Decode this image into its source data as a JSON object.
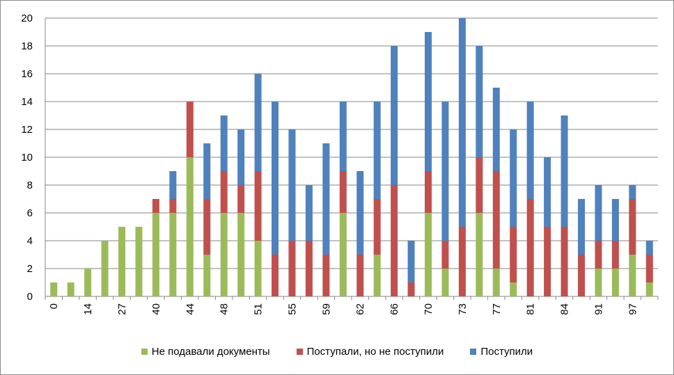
{
  "chart_data": {
    "type": "bar",
    "stacked": true,
    "ylim": [
      0,
      20
    ],
    "yticks": [
      0,
      2,
      4,
      6,
      8,
      10,
      12,
      14,
      16,
      18,
      20
    ],
    "grid": true,
    "legend_position": "bottom",
    "xtick_labels": [
      "0",
      "14",
      "27",
      "40",
      "44",
      "48",
      "51",
      "55",
      "59",
      "62",
      "66",
      "70",
      "73",
      "77",
      "81",
      "84",
      "91",
      "97"
    ],
    "series": [
      {
        "name": "Не подавали документы",
        "color": "#9bbb59",
        "values": [
          1,
          1,
          2,
          4,
          5,
          5,
          6,
          6,
          10,
          3,
          6,
          6,
          4,
          0,
          0,
          0,
          0,
          6,
          0,
          3,
          0,
          0,
          6,
          2,
          0,
          6,
          2,
          1,
          0,
          0,
          0,
          0,
          2,
          2,
          3,
          1
        ]
      },
      {
        "name": "Поступали, но не поступили",
        "color": "#c0504d",
        "values": [
          0,
          0,
          0,
          0,
          0,
          0,
          1,
          1,
          4,
          4,
          3,
          2,
          5,
          3,
          4,
          4,
          3,
          3,
          3,
          4,
          8,
          1,
          3,
          2,
          5,
          4,
          7,
          4,
          7,
          5,
          5,
          3,
          2,
          2,
          4,
          2
        ]
      },
      {
        "name": "Поступили",
        "color": "#4f81bd",
        "values": [
          0,
          0,
          0,
          0,
          0,
          0,
          0,
          2,
          0,
          4,
          4,
          4,
          7,
          11,
          8,
          4,
          8,
          5,
          6,
          7,
          10,
          3,
          10,
          10,
          15,
          8,
          6,
          7,
          7,
          5,
          8,
          4,
          4,
          3,
          1,
          1
        ]
      }
    ]
  }
}
